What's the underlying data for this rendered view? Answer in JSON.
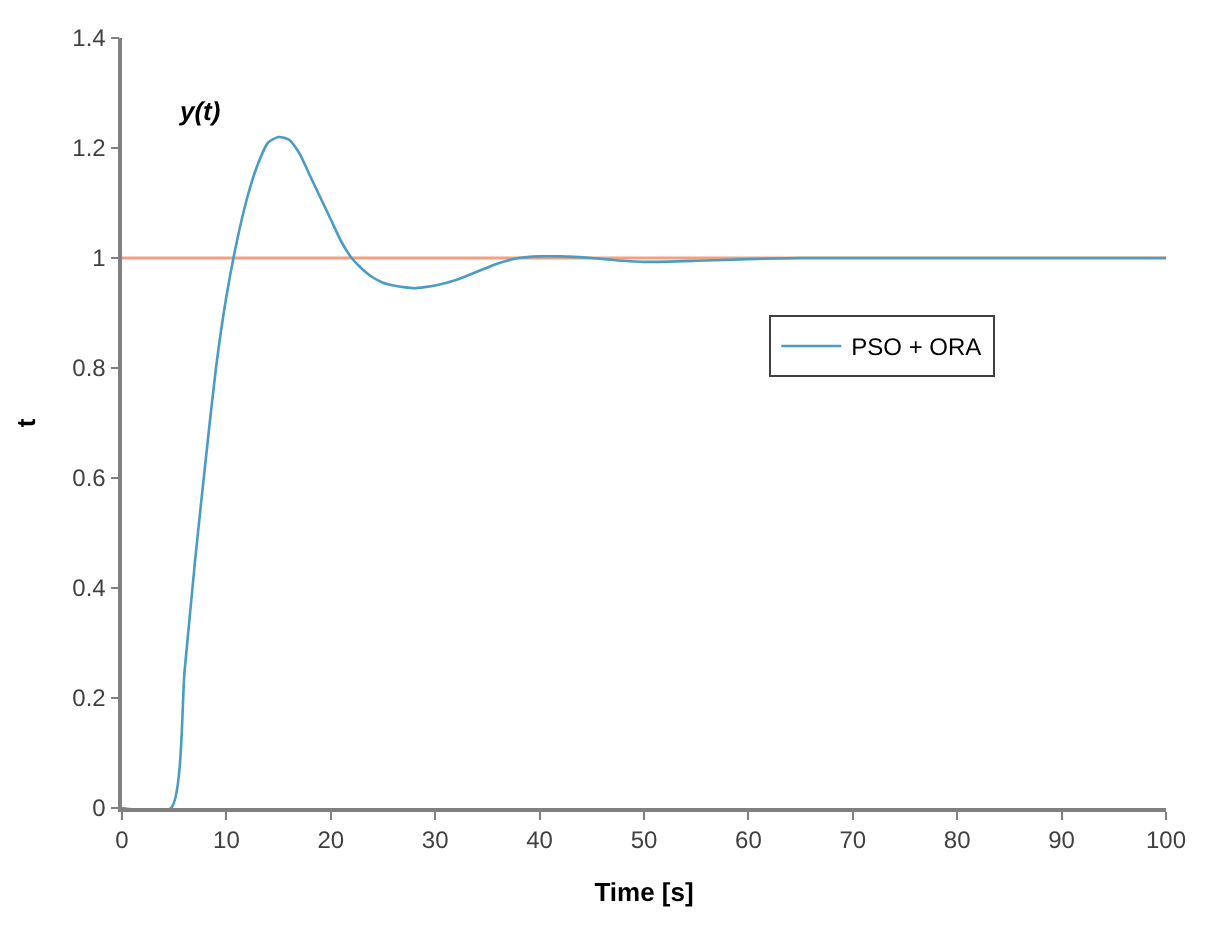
{
  "chart_data": {
    "type": "line",
    "xlabel": "Time [s]",
    "ylabel": "t",
    "annotations": [
      "y(t)"
    ],
    "xlim": [
      0,
      100
    ],
    "xticks": [
      0,
      10,
      20,
      30,
      40,
      50,
      60,
      70,
      80,
      90,
      100
    ],
    "ylim": [
      0,
      1.4
    ],
    "yticks": [
      0,
      0.2,
      0.4,
      0.6,
      0.8,
      1,
      1.2,
      1.4
    ],
    "grid": false,
    "legend": "right",
    "marker": "none",
    "line_style": "solid",
    "ref_lines": [
      {
        "axis": "y",
        "value": 1,
        "color": "#f4a080"
      }
    ],
    "series": [
      {
        "name": "PSO + ORA",
        "color": "#4a9cc4",
        "x": [
          0,
          4.7,
          6,
          7,
          8,
          9,
          10,
          11,
          12,
          13,
          14,
          15,
          16,
          17,
          18,
          19,
          20,
          21,
          22,
          23,
          24,
          25,
          26,
          27,
          28,
          29,
          30,
          32,
          34,
          36,
          38,
          40,
          42,
          45,
          48,
          50,
          55,
          60,
          65,
          70,
          80,
          90,
          100
        ],
        "values": [
          0,
          0,
          0.25,
          0.45,
          0.63,
          0.8,
          0.93,
          1.03,
          1.11,
          1.17,
          1.21,
          1.22,
          1.215,
          1.19,
          1.15,
          1.11,
          1.07,
          1.03,
          1.0,
          0.98,
          0.965,
          0.955,
          0.95,
          0.947,
          0.945,
          0.947,
          0.95,
          0.96,
          0.975,
          0.99,
          1.0,
          1.003,
          1.003,
          1.0,
          0.995,
          0.993,
          0.995,
          0.998,
          1.0,
          1.0,
          1.0,
          1.0,
          1.0
        ]
      }
    ]
  }
}
